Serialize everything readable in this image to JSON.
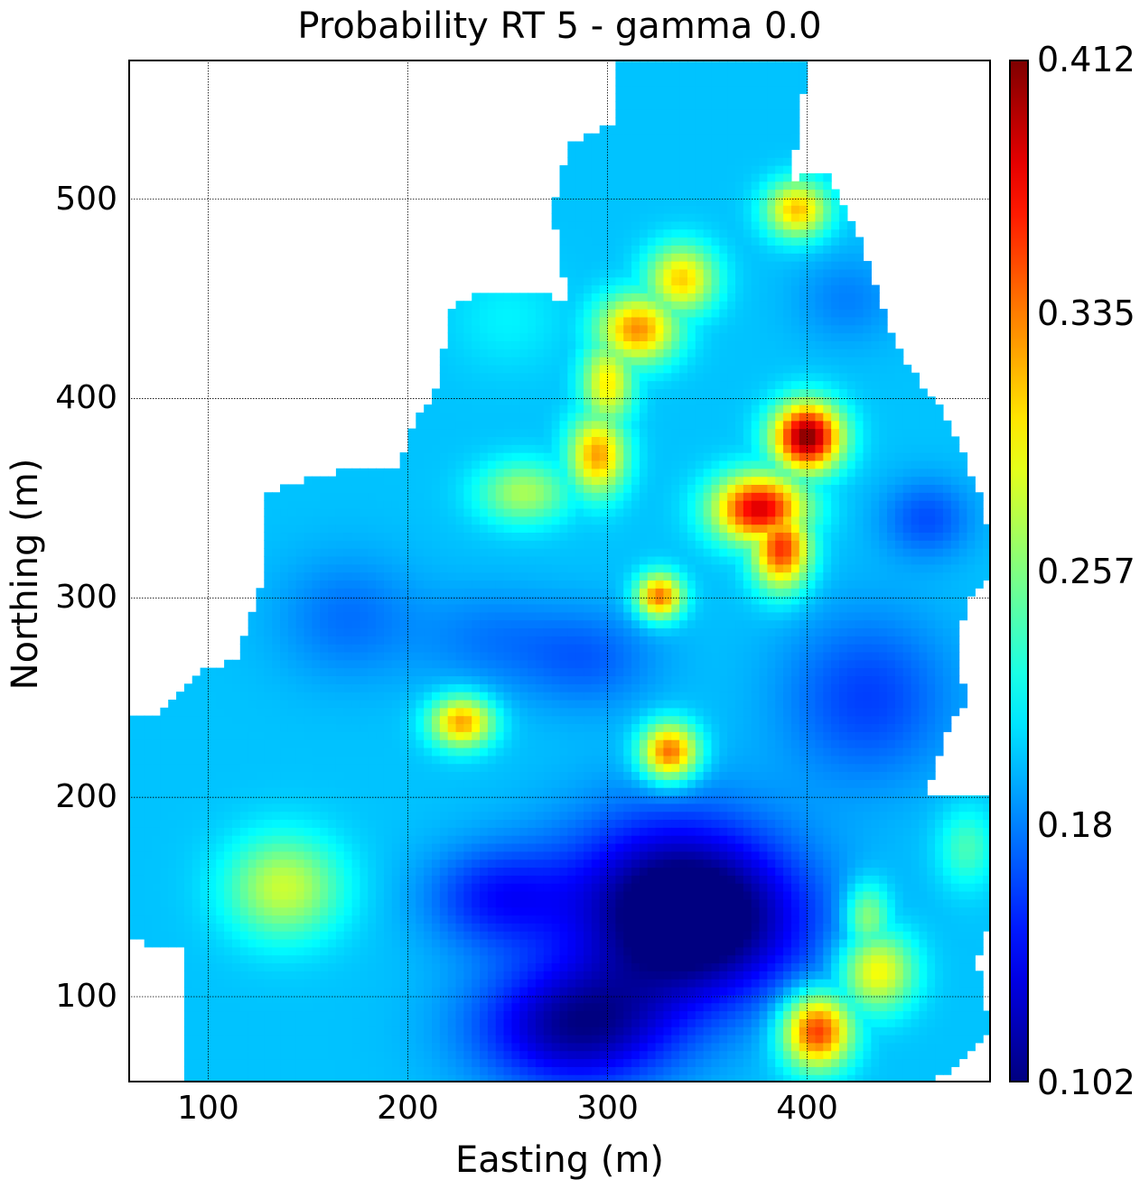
{
  "chart_data": {
    "type": "heatmap",
    "title": "Probability RT 5 - gamma 0.0",
    "xlabel": "Easting (m)",
    "ylabel": "Northing (m)",
    "xlim": [
      60,
      492
    ],
    "ylim": [
      57,
      570
    ],
    "xticks": [
      100,
      200,
      300,
      400
    ],
    "yticks": [
      100,
      200,
      300,
      400,
      500
    ],
    "x_tick_labels": [
      "100",
      "200",
      "300",
      "400"
    ],
    "y_tick_labels": [
      "100",
      "200",
      "300",
      "400",
      "500"
    ],
    "grid": true,
    "colormap": "jet",
    "colorbar": {
      "min": 0.102,
      "max": 0.412,
      "tick_values": [
        0.102,
        0.18,
        0.257,
        0.335,
        0.412
      ],
      "tick_labels": [
        "0.102",
        "0.18",
        "0.257",
        "0.335",
        "0.412"
      ]
    },
    "background_value": 0.2,
    "cell_size": 4,
    "domain_polygon": [
      [
        90,
        57
      ],
      [
        90,
        118
      ],
      [
        85,
        125
      ],
      [
        60,
        128
      ],
      [
        60,
        240
      ],
      [
        78,
        243
      ],
      [
        98,
        265
      ],
      [
        115,
        268
      ],
      [
        120,
        287
      ],
      [
        125,
        300
      ],
      [
        130,
        320
      ],
      [
        130,
        352
      ],
      [
        155,
        362
      ],
      [
        195,
        367
      ],
      [
        205,
        390
      ],
      [
        215,
        407
      ],
      [
        222,
        445
      ],
      [
        242,
        455
      ],
      [
        280,
        450
      ],
      [
        272,
        496
      ],
      [
        282,
        528
      ],
      [
        305,
        540
      ],
      [
        305,
        569
      ],
      [
        400,
        569
      ],
      [
        392,
        510
      ],
      [
        410,
        515
      ],
      [
        428,
        475
      ],
      [
        445,
        425
      ],
      [
        470,
        390
      ],
      [
        485,
        355
      ],
      [
        492,
        332
      ],
      [
        490,
        310
      ],
      [
        480,
        300
      ],
      [
        475,
        270
      ],
      [
        480,
        250
      ],
      [
        468,
        230
      ],
      [
        460,
        200
      ],
      [
        492,
        200
      ],
      [
        492,
        138
      ],
      [
        485,
        118
      ],
      [
        492,
        85
      ],
      [
        480,
        70
      ],
      [
        470,
        60
      ],
      [
        453,
        57
      ]
    ],
    "hotspots": [
      {
        "x": 400,
        "y": 381,
        "value": 0.412,
        "sx": 12,
        "sy": 12
      },
      {
        "x": 376,
        "y": 345,
        "value": 0.385,
        "sx": 16,
        "sy": 12
      },
      {
        "x": 387,
        "y": 325,
        "value": 0.36,
        "sx": 10,
        "sy": 14
      },
      {
        "x": 405,
        "y": 83,
        "value": 0.36,
        "sx": 12,
        "sy": 13
      },
      {
        "x": 435,
        "y": 113,
        "value": 0.3,
        "sx": 13,
        "sy": 14
      },
      {
        "x": 430,
        "y": 140,
        "value": 0.27,
        "sx": 8,
        "sy": 12
      },
      {
        "x": 315,
        "y": 435,
        "value": 0.33,
        "sx": 14,
        "sy": 12
      },
      {
        "x": 337,
        "y": 460,
        "value": 0.31,
        "sx": 12,
        "sy": 12
      },
      {
        "x": 295,
        "y": 372,
        "value": 0.325,
        "sx": 10,
        "sy": 14
      },
      {
        "x": 300,
        "y": 408,
        "value": 0.3,
        "sx": 9,
        "sy": 15
      },
      {
        "x": 258,
        "y": 353,
        "value": 0.27,
        "sx": 16,
        "sy": 11
      },
      {
        "x": 395,
        "y": 495,
        "value": 0.315,
        "sx": 11,
        "sy": 10
      },
      {
        "x": 326,
        "y": 301,
        "value": 0.34,
        "sx": 8,
        "sy": 8
      },
      {
        "x": 331,
        "y": 223,
        "value": 0.345,
        "sx": 10,
        "sy": 10
      },
      {
        "x": 227,
        "y": 238,
        "value": 0.325,
        "sx": 11,
        "sy": 9
      },
      {
        "x": 138,
        "y": 155,
        "value": 0.28,
        "sx": 20,
        "sy": 18
      },
      {
        "x": 480,
        "y": 175,
        "value": 0.24,
        "sx": 10,
        "sy": 14
      },
      {
        "x": 250,
        "y": 440,
        "value": 0.215,
        "sx": 20,
        "sy": 18
      }
    ],
    "coldspots": [
      {
        "x": 345,
        "y": 135,
        "value": 0.105,
        "sx": 40,
        "sy": 28
      },
      {
        "x": 285,
        "y": 85,
        "value": 0.11,
        "sx": 35,
        "sy": 22
      },
      {
        "x": 330,
        "y": 160,
        "value": 0.15,
        "sx": 40,
        "sy": 30
      },
      {
        "x": 245,
        "y": 150,
        "value": 0.15,
        "sx": 25,
        "sy": 18
      },
      {
        "x": 460,
        "y": 340,
        "value": 0.165,
        "sx": 16,
        "sy": 14
      },
      {
        "x": 430,
        "y": 250,
        "value": 0.16,
        "sx": 30,
        "sy": 30
      },
      {
        "x": 170,
        "y": 290,
        "value": 0.175,
        "sx": 25,
        "sy": 22
      },
      {
        "x": 290,
        "y": 270,
        "value": 0.17,
        "sx": 25,
        "sy": 18
      },
      {
        "x": 420,
        "y": 450,
        "value": 0.18,
        "sx": 18,
        "sy": 16
      },
      {
        "x": 240,
        "y": 280,
        "value": 0.18,
        "sx": 25,
        "sy": 18
      }
    ]
  }
}
